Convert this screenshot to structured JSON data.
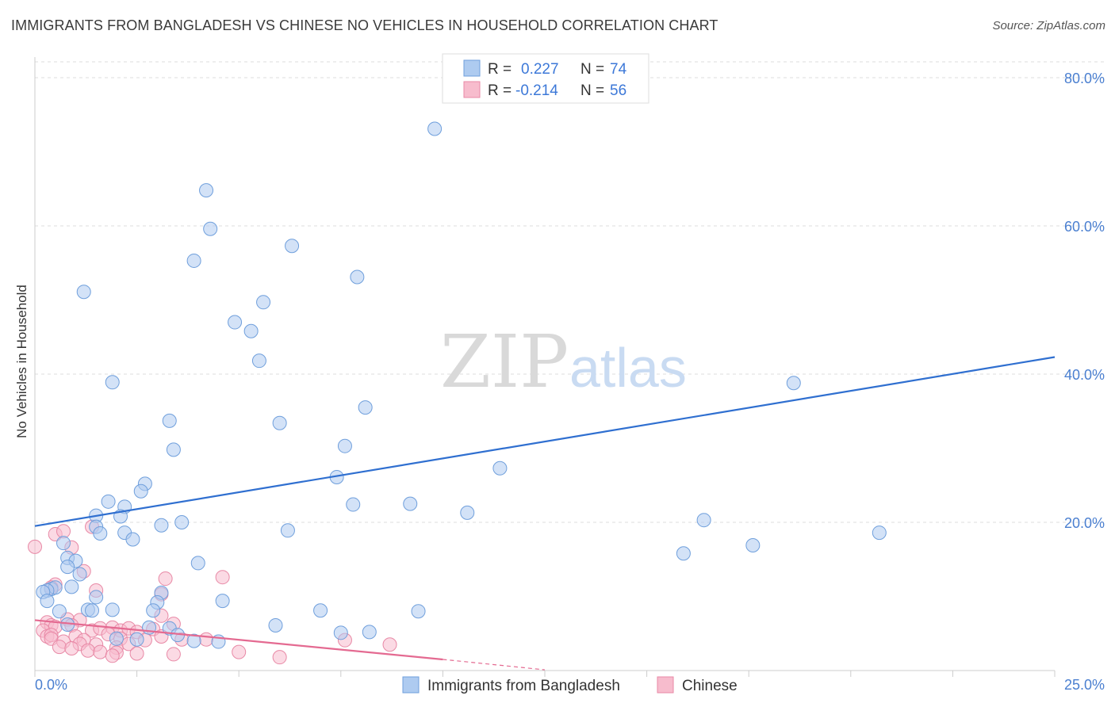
{
  "header": {
    "title": "IMMIGRANTS FROM BANGLADESH VS CHINESE NO VEHICLES IN HOUSEHOLD CORRELATION CHART",
    "source": "Source: ZipAtlas.com"
  },
  "watermark": {
    "zip": "ZIP",
    "atlas": "atlas"
  },
  "legend_box": {
    "rows": [
      {
        "r_label": "R =",
        "r_value": "0.227",
        "n_label": "N =",
        "n_value": "74"
      },
      {
        "r_label": "R =",
        "r_value": "-0.214",
        "n_label": "N =",
        "n_value": "56"
      }
    ]
  },
  "bottom_legend": [
    "Immigrants from Bangladesh",
    "Chinese"
  ],
  "colors": {
    "bangladesh_fill": "#aecbf0",
    "bangladesh_stroke": "#6f9fdc",
    "bangladesh_line": "#2f6fd0",
    "chinese_fill": "#f7bccd",
    "chinese_stroke": "#e889a6",
    "chinese_line": "#e46a91",
    "tick_text": "#4a7fd0",
    "grid": "#dddddd"
  },
  "chart_data": {
    "type": "scatter",
    "title": "IMMIGRANTS FROM BANGLADESH VS CHINESE NO VEHICLES IN HOUSEHOLD CORRELATION CHART",
    "xlabel": "",
    "ylabel": "No Vehicles in Household",
    "xlim": [
      0,
      25
    ],
    "ylim": [
      0,
      80
    ],
    "x_tick_labels": [
      "0.0%",
      "25.0%"
    ],
    "y_ticks": [
      20,
      40,
      60,
      80
    ],
    "y_tick_labels": [
      "20.0%",
      "40.0%",
      "60.0%",
      "80.0%"
    ],
    "grid": true,
    "legend_position": "top-center",
    "series": [
      {
        "name": "Immigrants from Bangladesh",
        "R": 0.227,
        "N": 74,
        "trend": {
          "x": [
            0,
            25
          ],
          "y": [
            19.5,
            42.3
          ]
        },
        "points": [
          [
            9.8,
            73.1
          ],
          [
            4.2,
            64.8
          ],
          [
            4.3,
            59.6
          ],
          [
            3.9,
            55.3
          ],
          [
            6.3,
            57.3
          ],
          [
            7.9,
            53.1
          ],
          [
            1.2,
            51.1
          ],
          [
            5.6,
            49.7
          ],
          [
            4.9,
            47.0
          ],
          [
            5.3,
            45.8
          ],
          [
            5.5,
            41.8
          ],
          [
            1.9,
            38.9
          ],
          [
            18.6,
            38.8
          ],
          [
            8.1,
            35.5
          ],
          [
            3.3,
            33.7
          ],
          [
            6.0,
            33.4
          ],
          [
            3.4,
            29.8
          ],
          [
            7.6,
            30.3
          ],
          [
            11.4,
            27.3
          ],
          [
            7.4,
            26.1
          ],
          [
            2.7,
            25.2
          ],
          [
            2.6,
            24.2
          ],
          [
            1.8,
            22.8
          ],
          [
            2.2,
            22.1
          ],
          [
            7.8,
            22.4
          ],
          [
            9.2,
            22.5
          ],
          [
            10.6,
            21.3
          ],
          [
            2.1,
            20.8
          ],
          [
            1.5,
            20.9
          ],
          [
            1.5,
            19.4
          ],
          [
            2.2,
            18.6
          ],
          [
            3.6,
            20.0
          ],
          [
            3.1,
            19.6
          ],
          [
            1.6,
            18.5
          ],
          [
            6.2,
            18.9
          ],
          [
            16.4,
            20.3
          ],
          [
            20.7,
            18.6
          ],
          [
            2.4,
            17.7
          ],
          [
            0.7,
            17.2
          ],
          [
            17.6,
            16.9
          ],
          [
            15.9,
            15.8
          ],
          [
            0.8,
            15.2
          ],
          [
            1.0,
            14.8
          ],
          [
            4.0,
            14.5
          ],
          [
            0.8,
            14.0
          ],
          [
            1.1,
            13.0
          ],
          [
            0.4,
            11.0
          ],
          [
            0.5,
            11.2
          ],
          [
            0.3,
            10.8
          ],
          [
            0.2,
            10.6
          ],
          [
            0.9,
            11.3
          ],
          [
            1.5,
            9.9
          ],
          [
            3.1,
            10.5
          ],
          [
            0.3,
            9.4
          ],
          [
            4.6,
            9.4
          ],
          [
            3.0,
            9.2
          ],
          [
            1.3,
            8.2
          ],
          [
            1.4,
            8.1
          ],
          [
            1.9,
            8.2
          ],
          [
            2.9,
            8.1
          ],
          [
            7.0,
            8.1
          ],
          [
            9.4,
            8.0
          ],
          [
            0.6,
            8.0
          ],
          [
            3.3,
            5.7
          ],
          [
            5.9,
            6.1
          ],
          [
            0.8,
            6.2
          ],
          [
            2.8,
            5.8
          ],
          [
            3.5,
            4.8
          ],
          [
            7.5,
            5.1
          ],
          [
            8.2,
            5.2
          ],
          [
            2.0,
            4.3
          ],
          [
            2.5,
            4.2
          ],
          [
            3.9,
            4.0
          ],
          [
            4.5,
            3.9
          ]
        ]
      },
      {
        "name": "Chinese",
        "R": -0.214,
        "N": 56,
        "trend": {
          "x": [
            0,
            10
          ],
          "y": [
            6.8,
            1.5
          ]
        },
        "trend_dashed": {
          "x": [
            10,
            12.5
          ],
          "y": [
            1.5,
            0.1
          ]
        },
        "points": [
          [
            0.0,
            16.7
          ],
          [
            0.5,
            18.4
          ],
          [
            0.7,
            18.8
          ],
          [
            0.9,
            16.6
          ],
          [
            1.4,
            19.4
          ],
          [
            1.2,
            13.4
          ],
          [
            3.2,
            12.4
          ],
          [
            4.6,
            12.6
          ],
          [
            0.5,
            11.6
          ],
          [
            0.4,
            11.2
          ],
          [
            1.5,
            10.8
          ],
          [
            3.1,
            10.3
          ],
          [
            3.1,
            7.4
          ],
          [
            0.8,
            6.9
          ],
          [
            1.1,
            6.8
          ],
          [
            1.9,
            5.8
          ],
          [
            0.3,
            6.5
          ],
          [
            0.4,
            6.1
          ],
          [
            0.5,
            5.9
          ],
          [
            0.9,
            6.1
          ],
          [
            1.4,
            5.4
          ],
          [
            1.6,
            5.7
          ],
          [
            2.1,
            5.4
          ],
          [
            2.3,
            5.7
          ],
          [
            2.9,
            5.6
          ],
          [
            2.5,
            5.2
          ],
          [
            3.4,
            6.3
          ],
          [
            0.2,
            5.4
          ],
          [
            0.3,
            4.6
          ],
          [
            0.4,
            4.8
          ],
          [
            1.0,
            4.6
          ],
          [
            1.2,
            4.1
          ],
          [
            1.8,
            4.9
          ],
          [
            2.1,
            4.3
          ],
          [
            2.7,
            4.1
          ],
          [
            3.1,
            4.6
          ],
          [
            3.6,
            4.2
          ],
          [
            0.4,
            4.3
          ],
          [
            0.7,
            3.9
          ],
          [
            1.1,
            3.6
          ],
          [
            1.5,
            3.5
          ],
          [
            2.0,
            3.1
          ],
          [
            2.3,
            3.6
          ],
          [
            0.6,
            3.2
          ],
          [
            0.9,
            3.0
          ],
          [
            1.3,
            2.7
          ],
          [
            1.6,
            2.5
          ],
          [
            2.0,
            2.4
          ],
          [
            2.5,
            2.3
          ],
          [
            3.4,
            2.2
          ],
          [
            4.2,
            4.2
          ],
          [
            5.0,
            2.5
          ],
          [
            6.0,
            1.8
          ],
          [
            7.6,
            4.1
          ],
          [
            8.7,
            3.5
          ],
          [
            1.9,
            2.0
          ]
        ]
      }
    ]
  }
}
